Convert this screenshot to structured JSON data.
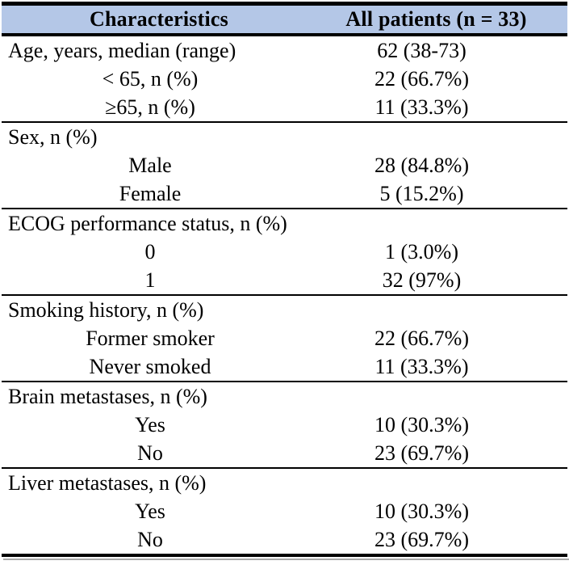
{
  "table": {
    "title_semantic": "patient-baseline-characteristics",
    "header_bg": "#B4C7E7",
    "border_color": "#000000",
    "header": {
      "col1": "Characteristics",
      "col2": "All patients (n = 33)"
    },
    "sections": [
      {
        "rows": [
          {
            "label": "Age, years, median (range)",
            "value": "62 (38-73)",
            "indent": false
          },
          {
            "label": "< 65, n (%)",
            "value": "22 (66.7%)",
            "indent": true
          },
          {
            "label": "≥65, n (%)",
            "value": "11 (33.3%)",
            "indent": true
          }
        ]
      },
      {
        "rows": [
          {
            "label": "Sex, n (%)",
            "value": "",
            "indent": false
          },
          {
            "label": "Male",
            "value": "28 (84.8%)",
            "indent": true
          },
          {
            "label": "Female",
            "value": "5 (15.2%)",
            "indent": true
          }
        ]
      },
      {
        "rows": [
          {
            "label": "ECOG performance status, n (%)",
            "value": "",
            "indent": false
          },
          {
            "label": "0",
            "value": "1 (3.0%)",
            "indent": true
          },
          {
            "label": "1",
            "value": "32 (97%)",
            "indent": true
          }
        ]
      },
      {
        "rows": [
          {
            "label": "Smoking history, n (%)",
            "value": "",
            "indent": false
          },
          {
            "label": "Former smoker",
            "value": "22 (66.7%)",
            "indent": true
          },
          {
            "label": "Never smoked",
            "value": "11 (33.3%)",
            "indent": true
          }
        ]
      },
      {
        "rows": [
          {
            "label": "Brain metastases, n (%)",
            "value": "",
            "indent": false
          },
          {
            "label": "Yes",
            "value": "10 (30.3%)",
            "indent": true
          },
          {
            "label": "No",
            "value": "23 (69.7%)",
            "indent": true
          }
        ]
      },
      {
        "rows": [
          {
            "label": "Liver metastases, n (%)",
            "value": "",
            "indent": false
          },
          {
            "label": "Yes",
            "value": "10 (30.3%)",
            "indent": true
          },
          {
            "label": "No",
            "value": "23 (69.7%)",
            "indent": true
          }
        ]
      }
    ]
  }
}
